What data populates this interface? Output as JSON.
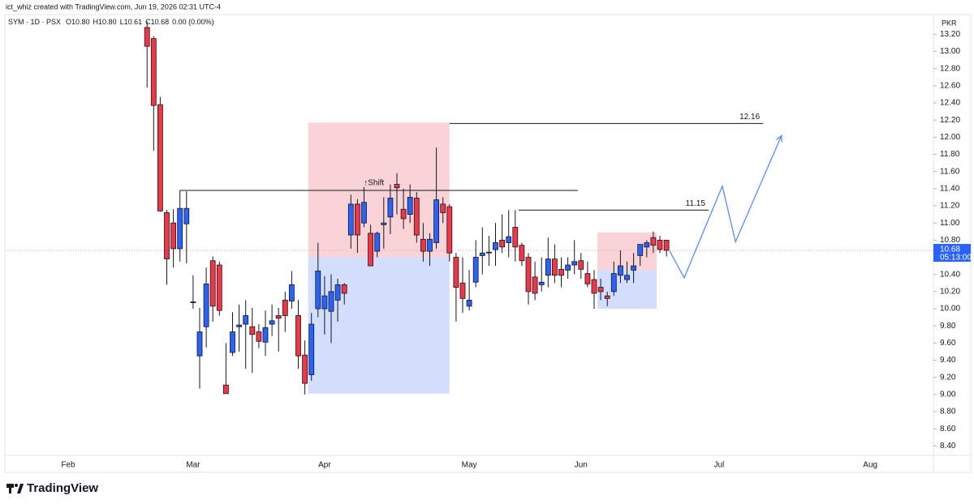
{
  "chart_data": {
    "type": "candlestick",
    "attribution": "ict_whiz created with TradingView.com, Jun 19, 2026 02:31 UTC-4",
    "symbol": "SYM · 1D · PSX",
    "ohlc_legend": [
      "O10.80",
      "H10.80",
      "L10.61",
      "C10.68",
      "0.00 (0.00%)"
    ],
    "currency": "PKR",
    "watermark": "TradingView",
    "up_color": "#2962ff",
    "down_color": "#f23645",
    "categories": [
      "Feb",
      null,
      null,
      null,
      null,
      null,
      null,
      null,
      null,
      null,
      null,
      null,
      null,
      null,
      null,
      null,
      null,
      null,
      null,
      "Mar",
      null,
      null,
      null,
      null,
      null,
      null,
      null,
      null,
      null,
      null,
      null,
      null,
      null,
      null,
      null,
      null,
      null,
      null,
      null,
      "Apr",
      null,
      null,
      null,
      null,
      null,
      null,
      null,
      null,
      null,
      null,
      null,
      null,
      null,
      null,
      null,
      null,
      null,
      null,
      null,
      null,
      null,
      "May",
      null,
      null,
      null,
      null,
      null,
      null,
      null,
      null,
      null,
      null,
      null,
      null,
      null,
      null,
      null,
      null,
      "Jun",
      null,
      null,
      null,
      null,
      null,
      null,
      null,
      null,
      null,
      null,
      null,
      null,
      null,
      null,
      null,
      null,
      null,
      null,
      null,
      null,
      "Jul",
      null,
      null,
      null,
      null,
      null,
      null,
      null,
      null,
      null,
      null,
      null,
      null,
      null,
      null,
      null,
      null,
      null,
      null,
      null,
      null,
      null,
      null,
      "Aug",
      null,
      null,
      null,
      null,
      null,
      null,
      null,
      null,
      null
    ],
    "open": [
      null,
      null,
      null,
      null,
      null,
      null,
      null,
      null,
      null,
      null,
      null,
      null,
      13.28,
      13.15,
      12.38,
      11.12,
      11.0,
      10.7,
      10.99,
      10.08,
      9.45,
      9.79,
      10.56,
      10.51,
      9.11,
      9.49,
      9.79,
      9.82,
      9.79,
      9.73,
      9.61,
      9.82,
      9.92,
      10.1,
      10.09,
      9.92,
      9.46,
      9.23,
      10.0,
      10.0,
      9.97,
      10.1,
      10.28,
      10.86,
      11.22,
      11.0,
      10.88,
      10.67,
      10.98,
      11.07,
      11.45,
      11.16,
      11.1,
      11.29,
      10.81,
      10.67,
      10.77,
      11.22,
      11.19,
      10.6,
      10.3,
      10.03,
      10.31,
      10.62,
      10.65,
      10.69,
      10.8,
      10.77,
      10.95,
      10.74,
      10.6,
      10.37,
      10.28,
      10.39,
      10.58,
      10.46,
      10.45,
      10.51,
      10.56,
      10.41,
      10.34,
      10.25,
      10.15,
      10.2,
      10.39,
      10.34,
      10.45,
      10.62,
      10.72,
      10.83,
      10.8,
      10.8,
      null,
      null,
      null,
      null,
      null,
      null,
      null,
      null,
      null,
      null,
      null,
      null,
      null,
      null,
      null,
      null,
      null,
      null,
      null,
      null,
      null,
      null,
      null,
      null,
      null,
      null,
      null,
      null,
      null,
      null,
      null,
      null,
      null,
      null,
      null,
      null,
      null,
      null,
      null,
      null
    ],
    "high": [
      null,
      null,
      null,
      null,
      null,
      null,
      null,
      null,
      null,
      null,
      null,
      null,
      13.35,
      13.18,
      12.47,
      11.15,
      11.16,
      11.38,
      11.37,
      10.39,
      10.01,
      10.48,
      10.61,
      10.55,
      9.6,
      9.96,
      10.05,
      10.1,
      10.01,
      9.82,
      9.98,
      10.05,
      10.01,
      10.2,
      10.44,
      10.1,
      9.63,
      9.95,
      10.77,
      10.38,
      10.4,
      10.35,
      10.3,
      11.33,
      11.28,
      11.42,
      10.98,
      10.9,
      11.3,
      11.45,
      11.58,
      11.4,
      11.45,
      11.36,
      11.0,
      10.88,
      11.88,
      11.3,
      11.22,
      10.65,
      10.6,
      10.45,
      10.8,
      10.95,
      10.85,
      11.0,
      11.1,
      11.15,
      11.15,
      10.77,
      10.65,
      10.55,
      10.6,
      10.83,
      10.75,
      10.6,
      10.6,
      10.8,
      10.65,
      10.55,
      10.45,
      10.35,
      10.2,
      10.55,
      10.68,
      10.55,
      10.65,
      10.75,
      10.8,
      10.9,
      10.85,
      10.8,
      null,
      null,
      null,
      null,
      null,
      null,
      null,
      null,
      null,
      null,
      null,
      null,
      null,
      null,
      null,
      null,
      null,
      null,
      null,
      null,
      null,
      null,
      null,
      null,
      null,
      null,
      null,
      null,
      null,
      null,
      null,
      null,
      null,
      null,
      null,
      null,
      null,
      null,
      null,
      null
    ],
    "low": [
      null,
      null,
      null,
      null,
      null,
      null,
      null,
      null,
      null,
      null,
      null,
      null,
      12.58,
      11.84,
      11.13,
      10.28,
      10.48,
      10.55,
      10.53,
      10.0,
      9.07,
      9.55,
      9.85,
      9.92,
      9.01,
      9.45,
      9.5,
      9.3,
      9.25,
      9.54,
      9.45,
      9.68,
      9.5,
      9.73,
      10.0,
      9.3,
      9.0,
      9.16,
      9.9,
      9.7,
      9.6,
      9.85,
      10.05,
      10.7,
      10.65,
      10.95,
      10.5,
      10.6,
      10.7,
      10.87,
      11.1,
      10.93,
      11.0,
      10.77,
      10.55,
      10.5,
      10.7,
      11.0,
      10.55,
      9.85,
      9.95,
      9.98,
      10.25,
      10.4,
      10.5,
      10.5,
      10.65,
      10.6,
      10.55,
      10.5,
      10.05,
      10.1,
      10.2,
      10.25,
      10.3,
      10.25,
      10.35,
      10.4,
      10.35,
      10.25,
      10.0,
      10.1,
      10.03,
      10.15,
      10.3,
      10.3,
      10.3,
      10.5,
      10.6,
      10.65,
      10.65,
      10.61,
      null,
      null,
      null,
      null,
      null,
      null,
      null,
      null,
      null,
      null,
      null,
      null,
      null,
      null,
      null,
      null,
      null,
      null,
      null,
      null,
      null,
      null,
      null,
      null,
      null,
      null,
      null,
      null,
      null,
      null,
      null,
      null,
      null,
      null,
      null,
      null,
      null,
      null,
      null,
      null
    ],
    "close": [
      null,
      null,
      null,
      null,
      null,
      null,
      null,
      null,
      null,
      null,
      null,
      null,
      13.06,
      12.37,
      11.14,
      10.58,
      10.7,
      11.17,
      11.17,
      10.07,
      9.73,
      10.29,
      10.03,
      9.98,
      9.01,
      9.73,
      9.81,
      9.92,
      9.7,
      9.62,
      9.78,
      9.86,
      9.89,
      9.92,
      10.28,
      9.45,
      9.13,
      9.82,
      10.44,
      10.15,
      10.2,
      10.28,
      10.18,
      11.22,
      10.86,
      11.24,
      10.5,
      10.88,
      11.0,
      11.29,
      11.41,
      11.05,
      11.3,
      10.86,
      10.67,
      10.81,
      11.27,
      11.12,
      10.65,
      10.25,
      10.12,
      10.1,
      10.6,
      10.65,
      10.66,
      10.77,
      10.72,
      10.84,
      10.72,
      10.56,
      10.2,
      10.18,
      10.31,
      10.58,
      10.39,
      10.39,
      10.51,
      10.55,
      10.46,
      10.29,
      10.18,
      10.2,
      10.12,
      10.41,
      10.5,
      10.39,
      10.5,
      10.75,
      10.77,
      10.74,
      10.69,
      10.68,
      null,
      null,
      null,
      null,
      null,
      null,
      null,
      null,
      null,
      null,
      null,
      null,
      null,
      null,
      null,
      null,
      null,
      null,
      null,
      null,
      null,
      null,
      null,
      null,
      null,
      null,
      null,
      null,
      null,
      null,
      null,
      null,
      null,
      null,
      null,
      null,
      null,
      null,
      null,
      null
    ],
    "ylim": [
      8.29,
      13.43
    ],
    "yticks": [
      {
        "value": 8.4,
        "label": "8.40"
      },
      {
        "value": 8.6,
        "label": "8.60"
      },
      {
        "value": 8.8,
        "label": "8.80"
      },
      {
        "value": 9.0,
        "label": "9.00"
      },
      {
        "value": 9.2,
        "label": "9.20"
      },
      {
        "value": 9.4,
        "label": "9.40"
      },
      {
        "value": 9.6,
        "label": "9.60"
      },
      {
        "value": 9.8,
        "label": "9.80"
      },
      {
        "value": 10.0,
        "label": "10.00"
      },
      {
        "value": 10.2,
        "label": "10.20"
      },
      {
        "value": 10.4,
        "label": "10.40"
      },
      {
        "value": 10.6,
        "label": "10.60"
      },
      {
        "value": 10.8,
        "label": "10.80"
      },
      {
        "value": 11.0,
        "label": "11.00"
      },
      {
        "value": 11.2,
        "label": "11.20"
      },
      {
        "value": 11.4,
        "label": "11.40"
      },
      {
        "value": 11.6,
        "label": "11.60"
      },
      {
        "value": 11.8,
        "label": "11.80"
      },
      {
        "value": 12.0,
        "label": "12.00"
      },
      {
        "value": 12.2,
        "label": "12.20"
      },
      {
        "value": 12.4,
        "label": "12.40"
      },
      {
        "value": 12.6,
        "label": "12.60"
      },
      {
        "value": 12.8,
        "label": "12.80"
      },
      {
        "value": 13.0,
        "label": "13.00"
      },
      {
        "value": 13.2,
        "label": "13.20"
      }
    ],
    "grid": false,
    "zones": [
      {
        "x0": 36.5,
        "x1": 58,
        "top": 12.17,
        "bottom": 10.6,
        "color": "#fad3d6"
      },
      {
        "x0": 36.5,
        "x1": 58,
        "top": 10.6,
        "bottom": 9.01,
        "color": "#d3defc"
      },
      {
        "x0": 80.5,
        "x1": 89.5,
        "top": 10.89,
        "bottom": 10.45,
        "color": "#fad3d6"
      },
      {
        "x0": 80.5,
        "x1": 89.5,
        "top": 10.45,
        "bottom": 10.0,
        "color": "#d3defc"
      }
    ],
    "levels": [
      {
        "x0": 17,
        "x1": 77.5,
        "price": 11.38,
        "text": "↑Shift"
      },
      {
        "x0": 58,
        "x1": 105.7,
        "price": 12.16
      },
      {
        "x0": 68.5,
        "x1": 97.4,
        "price": 11.15
      }
    ],
    "projection": {
      "color": "#5b8def",
      "x": [
        91.5,
        93.7,
        99.5,
        101.5,
        108.5
      ],
      "values": [
        10.67,
        10.36,
        11.43,
        10.78,
        12.02
      ]
    },
    "last_price": 10.68,
    "countdown": "05:13:00"
  }
}
